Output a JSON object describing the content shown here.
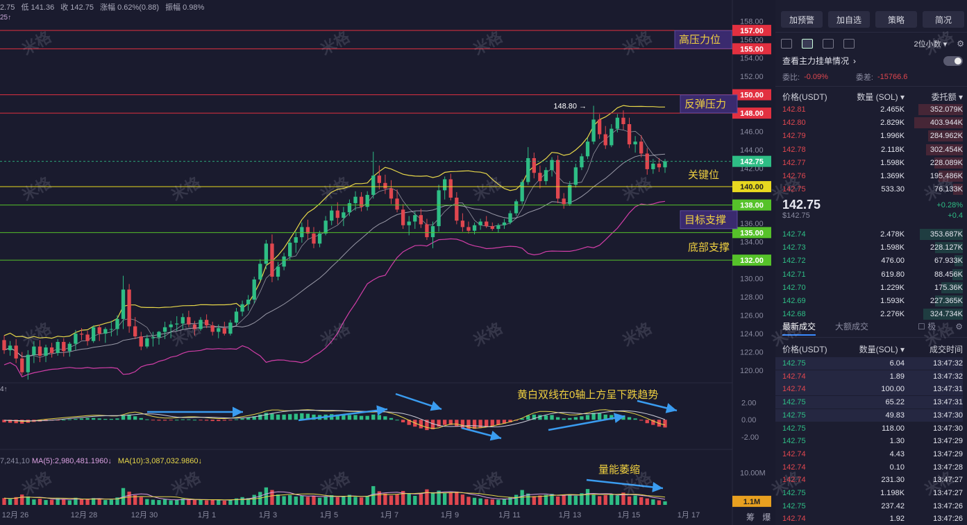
{
  "header": {
    "stats": [
      "2.75",
      "低 141.36",
      "收 142.75",
      "涨幅 0.62%(0.88)",
      "振幅 0.98%"
    ],
    "marker": "25↑"
  },
  "macd_label": "4↑",
  "volume_label": {
    "prefix": "7,241,10",
    "ma5": "MA(5):2,980,481.1960↓",
    "ma10": "MA(10):3,087,032.9860↓"
  },
  "bottom_right": [
    "筹",
    "爆"
  ],
  "watermark": "米格",
  "colors": {
    "up": "#2ebd85",
    "down": "#e0474f",
    "bg": "#1a1b2e",
    "yellow_ma": "#e8d84a",
    "pink_band": "#d23ea8",
    "gray_ma": "#9a9aa8"
  },
  "chart_data": {
    "type": "candlestick",
    "symbol_quote": "USDT",
    "price_axis": {
      "ticks": [
        120,
        122,
        124,
        126,
        128,
        130,
        132,
        134,
        136,
        138,
        140,
        142,
        144,
        146,
        148,
        150,
        152,
        154,
        156,
        158
      ],
      "tick_labels": [
        "120.00",
        "122.00",
        "124.00",
        "126.00",
        "128.00",
        "130.00",
        "132.00",
        "134.00",
        "136.00",
        "138.00",
        "140.00",
        "142.00",
        "144.00",
        "146.00",
        "148.00",
        "150.00",
        "152.00",
        "154.00",
        "156.00",
        "158.00"
      ],
      "range": [
        118.8,
        158.8
      ]
    },
    "x_axis": {
      "ticks": [
        "12月 26",
        "12月 28",
        "12月 30",
        "1月 1",
        "1月 3",
        "1月 5",
        "1月 7",
        "1月 9",
        "1月 11",
        "1月 13",
        "1月 15",
        "1月 17"
      ]
    },
    "current_price": {
      "value": 142.75,
      "label": "142.75"
    },
    "annotations": [
      {
        "price": 157,
        "label": "157.00",
        "color": "#e23040"
      },
      {
        "price": 155,
        "label": "155.00",
        "color": "#e23040",
        "text": "高压力位"
      },
      {
        "price": 150,
        "label": "150.00",
        "color": "#e23040"
      },
      {
        "price": 148,
        "label": "148.00",
        "color": "#e23040",
        "text": "反弹压力"
      },
      {
        "price": 140,
        "label": "140.00",
        "color": "#e8d820",
        "text": "关键位"
      },
      {
        "price": 138,
        "label": "138.00",
        "color": "#56c22a"
      },
      {
        "price": 135,
        "label": "135.00",
        "color": "#56c22a",
        "text": "目标支撑"
      },
      {
        "price": 132,
        "label": "132.00",
        "color": "#56c22a",
        "text": "底部支撑"
      }
    ],
    "high_marker": {
      "value": 148.8,
      "label": "148.80"
    },
    "macd_axis": {
      "ticks": [
        2,
        0,
        -2
      ],
      "tick_labels": [
        "2.00",
        "0.00",
        "-2.00"
      ]
    },
    "macd_note": "黄白双线在0轴上方呈下跌趋势",
    "volume_axis": {
      "ticks": [
        10
      ],
      "tick_labels": [
        "10.00M"
      ],
      "current": "1.1M"
    },
    "volume_note": "量能萎缩",
    "ohlc": [
      [
        123.3,
        123.8,
        121.8,
        122.2
      ],
      [
        122.2,
        123.2,
        121.6,
        122.7
      ],
      [
        122.7,
        123.4,
        120.8,
        121.3
      ],
      [
        121.3,
        122.0,
        119.5,
        119.8
      ],
      [
        119.8,
        122.2,
        119.0,
        121.7
      ],
      [
        121.7,
        123.2,
        120.8,
        122.6
      ],
      [
        122.6,
        123.3,
        120.9,
        121.6
      ],
      [
        121.6,
        122.8,
        120.9,
        122.5
      ],
      [
        122.5,
        123.0,
        121.4,
        121.9
      ],
      [
        121.9,
        123.4,
        121.6,
        123.1
      ],
      [
        123.1,
        123.5,
        121.5,
        122.1
      ],
      [
        122.1,
        123.1,
        121.5,
        122.9
      ],
      [
        122.9,
        124.4,
        122.2,
        124.0
      ],
      [
        124.0,
        124.6,
        123.3,
        123.9
      ],
      [
        123.9,
        124.3,
        122.7,
        123.2
      ],
      [
        123.2,
        124.9,
        123.0,
        124.7
      ],
      [
        124.7,
        125.0,
        123.2,
        124.0
      ],
      [
        124.0,
        124.7,
        123.0,
        124.5
      ],
      [
        124.5,
        125.4,
        123.7,
        124.5
      ],
      [
        124.5,
        126.0,
        123.8,
        125.6
      ],
      [
        125.6,
        130.3,
        124.5,
        128.8
      ],
      [
        128.8,
        129.4,
        124.1,
        124.8
      ],
      [
        124.8,
        125.8,
        123.4,
        123.7
      ],
      [
        123.7,
        124.2,
        122.2,
        122.6
      ],
      [
        122.6,
        123.9,
        122.4,
        123.5
      ],
      [
        123.5,
        124.2,
        122.6,
        123.6
      ],
      [
        123.6,
        124.3,
        122.8,
        124.2
      ],
      [
        124.2,
        125.3,
        123.4,
        124.7
      ],
      [
        124.7,
        125.4,
        123.5,
        125.0
      ],
      [
        125.0,
        125.9,
        124.3,
        125.1
      ],
      [
        125.1,
        126.2,
        124.5,
        125.8
      ],
      [
        125.8,
        126.5,
        124.7,
        125.0
      ],
      [
        125.0,
        125.4,
        123.8,
        124.5
      ],
      [
        124.5,
        125.8,
        124.3,
        125.5
      ],
      [
        125.5,
        126.1,
        124.6,
        124.9
      ],
      [
        124.9,
        125.3,
        123.8,
        124.2
      ],
      [
        124.2,
        125.0,
        123.5,
        124.6
      ],
      [
        124.6,
        125.3,
        123.8,
        124.0
      ],
      [
        124.0,
        125.5,
        123.8,
        125.2
      ],
      [
        125.2,
        126.8,
        124.9,
        126.4
      ],
      [
        126.4,
        127.6,
        125.9,
        127.2
      ],
      [
        127.2,
        128.2,
        126.5,
        127.7
      ],
      [
        127.7,
        130.2,
        127.3,
        129.9
      ],
      [
        129.9,
        132.1,
        129.7,
        131.6
      ],
      [
        131.6,
        134.2,
        131.0,
        133.8
      ],
      [
        133.8,
        134.8,
        129.6,
        130.2
      ],
      [
        130.2,
        131.8,
        129.8,
        131.3
      ],
      [
        131.3,
        132.8,
        130.9,
        132.4
      ],
      [
        132.4,
        134.3,
        132.0,
        133.9
      ],
      [
        133.9,
        135.1,
        132.8,
        134.5
      ],
      [
        134.5,
        136.1,
        133.9,
        135.6
      ],
      [
        135.6,
        136.4,
        134.2,
        134.9
      ],
      [
        134.9,
        135.6,
        133.3,
        133.8
      ],
      [
        133.8,
        135.2,
        133.4,
        134.9
      ],
      [
        134.9,
        136.8,
        134.7,
        136.3
      ],
      [
        136.3,
        137.9,
        135.8,
        137.4
      ],
      [
        137.4,
        138.3,
        135.9,
        136.6
      ],
      [
        136.6,
        137.8,
        135.7,
        137.2
      ],
      [
        137.2,
        138.6,
        136.8,
        138.2
      ],
      [
        138.2,
        139.5,
        137.4,
        138.9
      ],
      [
        138.9,
        139.4,
        137.3,
        137.8
      ],
      [
        137.8,
        139.5,
        137.4,
        139.1
      ],
      [
        139.1,
        143.8,
        138.7,
        141.2
      ],
      [
        141.2,
        142.3,
        139.7,
        140.4
      ],
      [
        140.4,
        141.3,
        139.2,
        139.8
      ],
      [
        139.8,
        140.7,
        138.1,
        138.7
      ],
      [
        138.7,
        139.7,
        137.2,
        137.5
      ],
      [
        137.5,
        138.1,
        135.4,
        135.8
      ],
      [
        135.8,
        136.8,
        134.7,
        136.2
      ],
      [
        136.2,
        137.3,
        135.4,
        136.9
      ],
      [
        136.9,
        137.6,
        135.5,
        135.9
      ],
      [
        135.9,
        136.5,
        134.2,
        134.5
      ],
      [
        134.5,
        136.2,
        133.3,
        135.7
      ],
      [
        135.7,
        140.2,
        135.1,
        139.6
      ],
      [
        139.6,
        141.1,
        138.6,
        140.8
      ],
      [
        140.8,
        141.4,
        138.5,
        138.8
      ],
      [
        138.8,
        139.4,
        135.9,
        136.3
      ],
      [
        136.3,
        137.1,
        135.1,
        135.6
      ],
      [
        135.6,
        136.2,
        134.9,
        135.2
      ],
      [
        135.2,
        136.1,
        134.8,
        135.8
      ],
      [
        135.8,
        136.5,
        135.3,
        136.2
      ],
      [
        136.2,
        136.8,
        135.5,
        135.7
      ],
      [
        135.7,
        136.1,
        135.2,
        135.4
      ],
      [
        135.4,
        136.0,
        135.0,
        135.8
      ],
      [
        135.8,
        136.5,
        135.4,
        136.1
      ],
      [
        136.1,
        137.4,
        135.9,
        137.1
      ],
      [
        137.1,
        138.6,
        136.8,
        138.4
      ],
      [
        138.4,
        140.8,
        138.1,
        140.5
      ],
      [
        140.5,
        144.3,
        140.2,
        143.1
      ],
      [
        143.1,
        143.7,
        140.9,
        141.5
      ],
      [
        141.5,
        142.3,
        139.8,
        140.6
      ],
      [
        140.6,
        142.1,
        140.2,
        141.8
      ],
      [
        141.8,
        143.2,
        141.1,
        142.9
      ],
      [
        142.9,
        143.4,
        138.2,
        138.7
      ],
      [
        138.7,
        139.3,
        137.6,
        138.1
      ],
      [
        138.1,
        140.6,
        137.9,
        140.2
      ],
      [
        140.2,
        142.5,
        139.9,
        142.1
      ],
      [
        142.1,
        143.6,
        141.8,
        143.3
      ],
      [
        143.3,
        145.3,
        143.0,
        144.9
      ],
      [
        144.9,
        148.8,
        144.6,
        147.3
      ],
      [
        147.3,
        147.9,
        145.2,
        145.7
      ],
      [
        145.7,
        146.6,
        144.1,
        144.5
      ],
      [
        144.5,
        146.8,
        144.3,
        146.3
      ],
      [
        146.3,
        147.9,
        145.9,
        147.5
      ],
      [
        147.5,
        148.3,
        146.2,
        146.8
      ],
      [
        146.8,
        147.5,
        144.2,
        144.6
      ],
      [
        144.6,
        145.5,
        143.7,
        144.9
      ],
      [
        144.9,
        145.6,
        143.2,
        143.6
      ],
      [
        143.6,
        144.2,
        141.3,
        141.9
      ],
      [
        141.9,
        143.0,
        141.4,
        142.5
      ],
      [
        142.5,
        143.1,
        141.6,
        142.1
      ],
      [
        142.1,
        143.0,
        141.5,
        142.75
      ]
    ],
    "macd_hist": [
      -0.3,
      -0.35,
      -0.4,
      -0.45,
      -0.35,
      -0.25,
      -0.2,
      -0.15,
      -0.1,
      -0.05,
      0,
      0.05,
      0.1,
      0.15,
      0.2,
      0.2,
      0.15,
      0.1,
      0.1,
      0.15,
      0.5,
      0.6,
      0.4,
      0.2,
      0.05,
      -0.05,
      -0.1,
      -0.1,
      -0.05,
      0,
      0.05,
      0.05,
      0,
      -0.05,
      -0.1,
      -0.15,
      -0.15,
      -0.1,
      -0.05,
      0.05,
      0.15,
      0.25,
      0.4,
      0.6,
      0.8,
      0.7,
      0.6,
      0.6,
      0.65,
      0.7,
      0.75,
      0.7,
      0.6,
      0.55,
      0.6,
      0.65,
      0.6,
      0.55,
      0.55,
      0.55,
      0.45,
      0.45,
      0.6,
      0.55,
      0.4,
      0.2,
      0,
      -0.3,
      -0.6,
      -0.8,
      -1,
      -1.2,
      -1.1,
      -0.8,
      -0.6,
      -0.6,
      -0.8,
      -1,
      -1.1,
      -1.05,
      -0.95,
      -0.85,
      -0.75,
      -0.6,
      -0.45,
      -0.3,
      -0.1,
      0.15,
      0.5,
      0.6,
      0.55,
      0.5,
      0.55,
      0.3,
      0.15,
      0.2,
      0.3,
      0.4,
      0.55,
      0.8,
      0.75,
      0.6,
      0.55,
      0.6,
      0.5,
      0.3,
      0.15,
      -0.1,
      -0.4,
      -0.6,
      -0.8,
      -0.9
    ],
    "volume_m": [
      2.1,
      1.8,
      2.4,
      3.2,
      2.6,
      1.7,
      1.9,
      1.5,
      1.6,
      2.0,
      1.8,
      1.4,
      2.2,
      1.7,
      1.9,
      2.1,
      1.8,
      1.5,
      1.6,
      2.3,
      5.2,
      4.1,
      3.0,
      2.4,
      1.8,
      1.6,
      1.5,
      1.7,
      1.4,
      1.6,
      1.9,
      1.7,
      1.5,
      1.6,
      1.4,
      1.7,
      1.5,
      1.3,
      1.6,
      2.0,
      2.4,
      2.1,
      3.1,
      4.0,
      5.4,
      4.6,
      3.2,
      2.7,
      3.0,
      2.6,
      2.9,
      2.5,
      2.8,
      2.2,
      2.6,
      3.0,
      2.4,
      2.7,
      3.1,
      2.5,
      2.3,
      2.8,
      5.8,
      4.2,
      3.5,
      2.9,
      3.2,
      4.3,
      3.6,
      2.8,
      3.4,
      4.8,
      3.9,
      4.4,
      3.6,
      3.8,
      4.1,
      3.2,
      2.5,
      2.2,
      2.0,
      1.8,
      1.7,
      1.6,
      1.9,
      2.4,
      3.1,
      4.6,
      3.5,
      2.7,
      2.9,
      3.1,
      3.4,
      2.6,
      2.9,
      3.3,
      2.8,
      3.6,
      4.9,
      3.1,
      2.7,
      3.0,
      3.4,
      2.9,
      3.8,
      2.6,
      2.9,
      2.4,
      2.0,
      1.7,
      1.4,
      1.1
    ]
  },
  "side": {
    "buttons": [
      "加预警",
      "加自选",
      "策略",
      "简况"
    ],
    "precision": "2位小数",
    "mainforce": "查看主力挂单情况",
    "ratio": {
      "label": "委比:",
      "value": "-0.09%",
      "diff_label": "委差:",
      "diff_value": "-15766.6"
    },
    "ob_headers": [
      "价格(USDT)",
      "数量 (SOL)",
      "委托额"
    ],
    "asks": [
      [
        "142.81",
        "2.465K",
        "352.079K",
        0.92
      ],
      [
        "142.80",
        "2.829K",
        "403.944K",
        1.0
      ],
      [
        "142.79",
        "1.996K",
        "284.962K",
        0.72
      ],
      [
        "142.78",
        "2.118K",
        "302.454K",
        0.76
      ],
      [
        "142.77",
        "1.598K",
        "228.089K",
        0.58
      ],
      [
        "142.76",
        "1.369K",
        "195.486K",
        0.5
      ],
      [
        "142.75",
        "533.30",
        "76.133K",
        0.2
      ]
    ],
    "last_price": "142.75",
    "last_price_sub": "$142.75",
    "change_pct": "+0.28%",
    "change_abs": "+0.4",
    "bids": [
      [
        "142.74",
        "2.478K",
        "353.687K",
        0.88
      ],
      [
        "142.73",
        "1.598K",
        "228.127K",
        0.57
      ],
      [
        "142.72",
        "476.00",
        "67.933K",
        0.17
      ],
      [
        "142.71",
        "619.80",
        "88.456K",
        0.22
      ],
      [
        "142.70",
        "1.229K",
        "175.36K",
        0.44
      ],
      [
        "142.69",
        "1.593K",
        "227.365K",
        0.57
      ],
      [
        "142.68",
        "2.276K",
        "324.734K",
        0.81
      ]
    ],
    "tabs": [
      "最新成交",
      "大额成交",
      "极"
    ],
    "trade_headers": [
      "价格(USDT)",
      "数量(SOL)",
      "成交时间"
    ],
    "trades": [
      [
        "142.75",
        "6.04",
        "13:47:32",
        "g"
      ],
      [
        "142.74",
        "1.89",
        "13:47:32",
        "r"
      ],
      [
        "142.74",
        "100.00",
        "13:47:31",
        "r"
      ],
      [
        "142.75",
        "65.22",
        "13:47:31",
        "g"
      ],
      [
        "142.75",
        "49.83",
        "13:47:30",
        "g"
      ],
      [
        "142.75",
        "118.00",
        "13:47:30",
        "g"
      ],
      [
        "142.75",
        "1.30",
        "13:47:29",
        "g"
      ],
      [
        "142.74",
        "4.43",
        "13:47:29",
        "r"
      ],
      [
        "142.74",
        "0.10",
        "13:47:28",
        "r"
      ],
      [
        "142.74",
        "231.30",
        "13:47:27",
        "r"
      ],
      [
        "142.75",
        "1.198K",
        "13:47:27",
        "g"
      ],
      [
        "142.75",
        "237.42",
        "13:47:26",
        "g"
      ],
      [
        "142.74",
        "1.92",
        "13:47:26",
        "r"
      ]
    ]
  }
}
